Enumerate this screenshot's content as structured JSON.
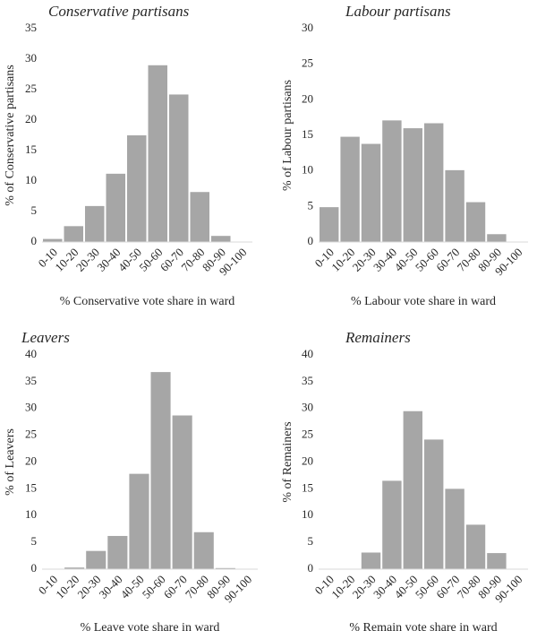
{
  "chart_data": [
    {
      "type": "bar",
      "title": "Conservative partisans",
      "categories": [
        "0-10",
        "10-20",
        "20-30",
        "30-40",
        "40-50",
        "50-60",
        "60-70",
        "70-80",
        "80-90",
        "90-100"
      ],
      "values": [
        0.5,
        2.6,
        5.9,
        11.2,
        17.5,
        29.0,
        24.2,
        8.2,
        1.0,
        0.0
      ],
      "xlabel": "% Conservative vote share in ward",
      "ylabel": "% of Conservative partisans",
      "ylim": [
        0,
        35
      ],
      "yticks": [
        0,
        5,
        10,
        15,
        20,
        25,
        30,
        35
      ],
      "bar_color": "#a6a6a6",
      "grid": false
    },
    {
      "type": "bar",
      "title": "Labour partisans",
      "categories": [
        "0-10",
        "10-20",
        "20-30",
        "30-40",
        "40-50",
        "50-60",
        "60-70",
        "70-80",
        "80-90",
        "90-100"
      ],
      "values": [
        4.9,
        14.8,
        13.8,
        17.1,
        16.0,
        16.7,
        10.1,
        5.6,
        1.1,
        0.0
      ],
      "xlabel": "% Labour vote share in ward",
      "ylabel": "% of Labour partisans",
      "ylim": [
        0,
        30
      ],
      "yticks": [
        0,
        5,
        10,
        15,
        20,
        25,
        30
      ],
      "bar_color": "#a6a6a6",
      "grid": false
    },
    {
      "type": "bar",
      "title": "Leavers",
      "categories": [
        "0-10",
        "10-20",
        "20-30",
        "30-40",
        "40-50",
        "50-60",
        "60-70",
        "70-80",
        "80-90",
        "90-100"
      ],
      "values": [
        0.0,
        0.3,
        3.4,
        6.2,
        17.8,
        36.8,
        28.7,
        6.9,
        0.2,
        0.0
      ],
      "xlabel": "% Leave vote share in ward",
      "ylabel": "% of Leavers",
      "ylim": [
        0,
        40
      ],
      "yticks": [
        0,
        5,
        10,
        15,
        20,
        25,
        30,
        35,
        40
      ],
      "bar_color": "#a6a6a6",
      "grid": false
    },
    {
      "type": "bar",
      "title": "Remainers",
      "categories": [
        "0-10",
        "10-20",
        "20-30",
        "30-40",
        "40-50",
        "50-60",
        "60-70",
        "70-80",
        "80-90",
        "90-100"
      ],
      "values": [
        0.0,
        0.0,
        3.1,
        16.5,
        29.5,
        24.2,
        15.0,
        8.3,
        3.0,
        0.0
      ],
      "xlabel": "% Remain vote share in ward",
      "ylabel": "% of Remainers",
      "ylim": [
        0,
        40
      ],
      "yticks": [
        0,
        5,
        10,
        15,
        20,
        25,
        30,
        35,
        40
      ],
      "bar_color": "#a6a6a6",
      "grid": false
    }
  ]
}
